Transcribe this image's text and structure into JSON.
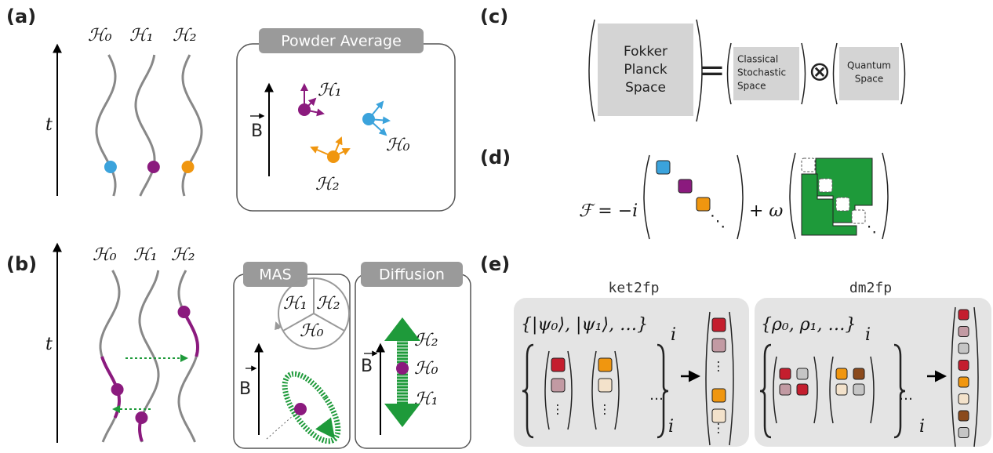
{
  "panel_a": {
    "label": "(a)",
    "time_axis": "t",
    "trajectories": [
      "ℋ₀",
      "ℋ₁",
      "ℋ₂"
    ],
    "box_title": "Powder Average",
    "field": "B",
    "orientations": [
      "ℋ₁",
      "ℋ₀",
      "ℋ₂"
    ]
  },
  "panel_b": {
    "label": "(b)",
    "time_axis": "t",
    "trajectories": [
      "ℋ₀",
      "ℋ₁",
      "ℋ₂"
    ],
    "mas": {
      "title": "MAS",
      "field": "B",
      "sectors": [
        "ℋ₁",
        "ℋ₂",
        "ℋ₀"
      ]
    },
    "diffusion": {
      "title": "Diffusion",
      "field": "B",
      "states": [
        "ℋ₂",
        "ℋ₀",
        "ℋ₁"
      ]
    }
  },
  "panel_c": {
    "label": "(c)",
    "fokker_planck": [
      "Fokker",
      "Planck",
      "Space"
    ],
    "equals": "=",
    "classical": [
      "Classical",
      "Stochastic",
      "Space"
    ],
    "tensor": "⊗",
    "quantum": [
      "Quantum",
      "Space"
    ]
  },
  "panel_d": {
    "label": "(d)",
    "lhs": "ℱ = −i",
    "plus": "+ ω",
    "diagonal_dots": "⋱"
  },
  "panel_e": {
    "label": "(e)",
    "vertical_dots": "⋮",
    "ellipsis": "…",
    "subscript": "i",
    "ket2fp": {
      "title": "ket2fp",
      "set": "{|ψ₀⟩, |ψ₁⟩, …}"
    },
    "dm2fp": {
      "title": "dm2fp",
      "set": "{ρ₀, ρ₁, …}"
    }
  }
}
